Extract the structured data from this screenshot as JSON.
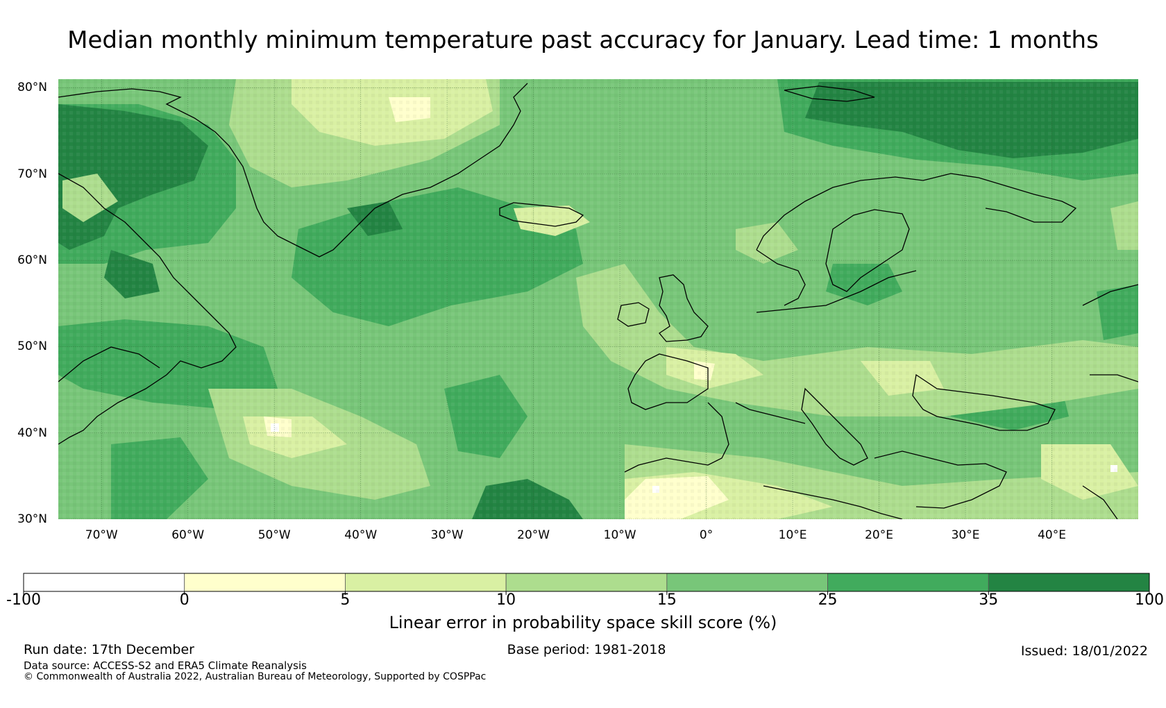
{
  "title": "Median monthly minimum temperature past accuracy for January. Lead time: 1 months",
  "map": {
    "region": "North Atlantic and Europe",
    "lon_range": [
      -75,
      50
    ],
    "lat_range": [
      30,
      81
    ],
    "lat_ticks": [
      {
        "value": 80,
        "label": "80°N"
      },
      {
        "value": 70,
        "label": "70°N"
      },
      {
        "value": 60,
        "label": "60°N"
      },
      {
        "value": 50,
        "label": "50°N"
      },
      {
        "value": 40,
        "label": "40°N"
      },
      {
        "value": 30,
        "label": "30°N"
      }
    ],
    "lon_ticks": [
      {
        "value": -70,
        "label": "70°W"
      },
      {
        "value": -60,
        "label": "60°W"
      },
      {
        "value": -50,
        "label": "50°W"
      },
      {
        "value": -40,
        "label": "40°W"
      },
      {
        "value": -30,
        "label": "30°W"
      },
      {
        "value": -20,
        "label": "20°W"
      },
      {
        "value": -10,
        "label": "10°W"
      },
      {
        "value": 0,
        "label": "0°"
      },
      {
        "value": 10,
        "label": "10°E"
      },
      {
        "value": 20,
        "label": "20°E"
      },
      {
        "value": 30,
        "label": "30°E"
      },
      {
        "value": 40,
        "label": "40°E"
      }
    ]
  },
  "colorbar": {
    "title": "Linear error in probability space skill score (%)",
    "boundaries": [
      -100,
      0,
      5,
      10,
      15,
      25,
      35,
      100
    ],
    "tick_labels": [
      "-100",
      "0",
      "5",
      "10",
      "15",
      "25",
      "35",
      "100"
    ],
    "colors": [
      "#ffffff",
      "#ffffcc",
      "#d9f0a3",
      "#addd8e",
      "#78c679",
      "#41ab5d",
      "#238443"
    ]
  },
  "footer": {
    "run_date": "Run date: 17th December",
    "base_period": "Base period: 1981-2018",
    "issued": "Issued: 18/01/2022",
    "data_source": "Data source: ACCESS-S2 and ERA5 Climate Reanalysis",
    "copyright": "© Commonwealth of Australia 2022, Australian Bureau of Meteorology, Supported by COSPPac"
  }
}
